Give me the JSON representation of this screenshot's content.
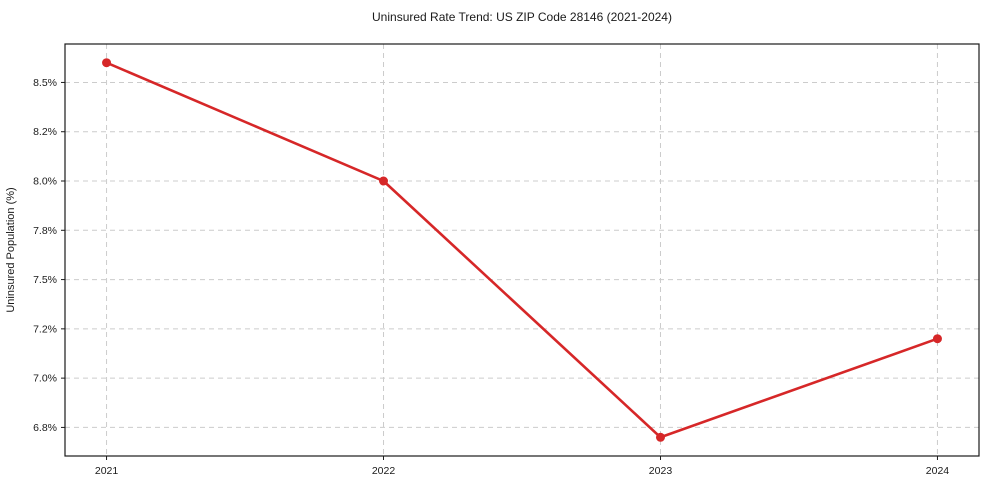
{
  "chart_data": {
    "type": "line",
    "title": "Uninsured Rate Trend: US ZIP Code 28146 (2021-2024)",
    "xlabel": "",
    "ylabel": "Uninsured Population (%)",
    "x": [
      2021,
      2022,
      2023,
      2024
    ],
    "values": [
      8.6,
      8.0,
      6.7,
      7.2
    ],
    "x_tick_labels": [
      "2021",
      "2022",
      "2023",
      "2024"
    ],
    "y_ticks": [
      6.75,
      7.0,
      7.25,
      7.5,
      7.75,
      8.0,
      8.25,
      8.5
    ],
    "y_tick_labels": [
      "6.8%",
      "7.0%",
      "7.2%",
      "7.5%",
      "7.8%",
      "8.0%",
      "8.2%",
      "8.5%"
    ],
    "xlim": [
      2020.85,
      2024.15
    ],
    "ylim": [
      6.605,
      8.695
    ],
    "grid": true,
    "legend": false,
    "line_color": "#d62728",
    "marker_color": "#d62728",
    "grid_color": "#cccccc",
    "axis_color": "#1a1a1a",
    "background": "#ffffff"
  }
}
